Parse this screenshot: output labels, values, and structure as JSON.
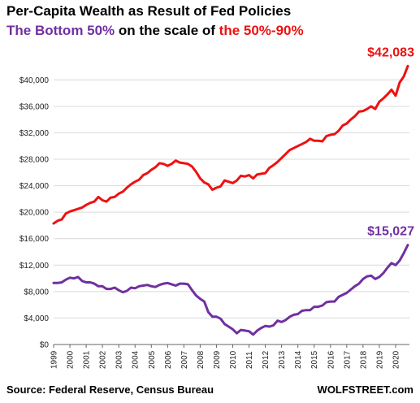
{
  "title": {
    "line1": "Per-Capita Wealth as Result of Fed Policies",
    "line2_part1": "The Bottom 50%",
    "line2_part2": " on the scale of ",
    "line2_part3": "the 50%-90%"
  },
  "footer": {
    "source": "Source: Federal Reserve, Census Bureau",
    "brand": "WOLFSTREET.com"
  },
  "colors": {
    "top_series": "#ee1111",
    "bottom_series": "#7030a0",
    "title": "#000000",
    "grid": "#d9d9d9",
    "axis": "#666666"
  },
  "chart_data": {
    "type": "line",
    "title": "Per-Capita Wealth as Result of Fed Policies",
    "xlabel": "",
    "ylabel": "",
    "x_ticks": [
      "1999",
      "2000",
      "2001",
      "2002",
      "2003",
      "2004",
      "2005",
      "2006",
      "2007",
      "2008",
      "2009",
      "2010",
      "2011",
      "2012",
      "2013",
      "2014",
      "2015",
      "2016",
      "2017",
      "2018",
      "2019",
      "2020"
    ],
    "xlim": [
      1999,
      2020.85
    ],
    "ylim": [
      0,
      42000
    ],
    "y_ticks": [
      0,
      4000,
      8000,
      12000,
      16000,
      20000,
      24000,
      28000,
      32000,
      36000,
      40000
    ],
    "y_tick_labels": [
      "$0",
      "$4,000",
      "$8,000",
      "$12,000",
      "$16,000",
      "$20,000",
      "$24,000",
      "$28,000",
      "$32,000",
      "$36,000",
      "$40,000"
    ],
    "grid": true,
    "series": [
      {
        "name": "the 50%-90%",
        "color": "#ee1111",
        "end_label": "$42,083",
        "points": [
          [
            1999.0,
            18300
          ],
          [
            1999.25,
            18700
          ],
          [
            1999.5,
            18900
          ],
          [
            1999.75,
            19800
          ],
          [
            2000.0,
            20100
          ],
          [
            2000.25,
            20300
          ],
          [
            2000.5,
            20500
          ],
          [
            2000.75,
            20700
          ],
          [
            2001.0,
            21100
          ],
          [
            2001.25,
            21400
          ],
          [
            2001.5,
            21600
          ],
          [
            2001.75,
            22300
          ],
          [
            2002.0,
            21800
          ],
          [
            2002.25,
            21600
          ],
          [
            2002.5,
            22200
          ],
          [
            2002.75,
            22300
          ],
          [
            2003.0,
            22800
          ],
          [
            2003.25,
            23100
          ],
          [
            2003.5,
            23700
          ],
          [
            2003.75,
            24200
          ],
          [
            2004.0,
            24600
          ],
          [
            2004.25,
            24900
          ],
          [
            2004.5,
            25600
          ],
          [
            2004.75,
            25900
          ],
          [
            2005.0,
            26400
          ],
          [
            2005.25,
            26800
          ],
          [
            2005.5,
            27400
          ],
          [
            2005.75,
            27300
          ],
          [
            2006.0,
            27000
          ],
          [
            2006.25,
            27300
          ],
          [
            2006.5,
            27800
          ],
          [
            2006.75,
            27500
          ],
          [
            2007.0,
            27400
          ],
          [
            2007.25,
            27300
          ],
          [
            2007.5,
            26900
          ],
          [
            2007.75,
            26100
          ],
          [
            2008.0,
            25100
          ],
          [
            2008.25,
            24500
          ],
          [
            2008.5,
            24200
          ],
          [
            2008.75,
            23400
          ],
          [
            2009.0,
            23700
          ],
          [
            2009.25,
            23900
          ],
          [
            2009.5,
            24800
          ],
          [
            2009.75,
            24600
          ],
          [
            2010.0,
            24400
          ],
          [
            2010.25,
            24800
          ],
          [
            2010.5,
            25500
          ],
          [
            2010.75,
            25400
          ],
          [
            2011.0,
            25600
          ],
          [
            2011.25,
            25100
          ],
          [
            2011.5,
            25700
          ],
          [
            2011.75,
            25800
          ],
          [
            2012.0,
            25900
          ],
          [
            2012.25,
            26700
          ],
          [
            2012.5,
            27100
          ],
          [
            2012.75,
            27600
          ],
          [
            2013.0,
            28200
          ],
          [
            2013.25,
            28800
          ],
          [
            2013.5,
            29400
          ],
          [
            2013.75,
            29700
          ],
          [
            2014.0,
            30000
          ],
          [
            2014.25,
            30300
          ],
          [
            2014.5,
            30600
          ],
          [
            2014.75,
            31100
          ],
          [
            2015.0,
            30800
          ],
          [
            2015.25,
            30800
          ],
          [
            2015.5,
            30700
          ],
          [
            2015.75,
            31500
          ],
          [
            2016.0,
            31700
          ],
          [
            2016.25,
            31800
          ],
          [
            2016.5,
            32300
          ],
          [
            2016.75,
            33100
          ],
          [
            2017.0,
            33400
          ],
          [
            2017.25,
            34000
          ],
          [
            2017.5,
            34500
          ],
          [
            2017.75,
            35200
          ],
          [
            2018.0,
            35300
          ],
          [
            2018.25,
            35600
          ],
          [
            2018.5,
            36000
          ],
          [
            2018.75,
            35600
          ],
          [
            2019.0,
            36700
          ],
          [
            2019.25,
            37200
          ],
          [
            2019.5,
            37800
          ],
          [
            2019.75,
            38500
          ],
          [
            2020.0,
            37600
          ],
          [
            2020.25,
            39600
          ],
          [
            2020.5,
            40500
          ],
          [
            2020.75,
            42083
          ]
        ]
      },
      {
        "name": "The Bottom 50%",
        "color": "#7030a0",
        "end_label": "$15,027",
        "points": [
          [
            1999.0,
            9300
          ],
          [
            1999.25,
            9300
          ],
          [
            1999.5,
            9400
          ],
          [
            1999.75,
            9800
          ],
          [
            2000.0,
            10100
          ],
          [
            2000.25,
            10000
          ],
          [
            2000.5,
            10200
          ],
          [
            2000.75,
            9600
          ],
          [
            2001.0,
            9400
          ],
          [
            2001.25,
            9400
          ],
          [
            2001.5,
            9200
          ],
          [
            2001.75,
            8800
          ],
          [
            2002.0,
            8800
          ],
          [
            2002.25,
            8400
          ],
          [
            2002.5,
            8400
          ],
          [
            2002.75,
            8600
          ],
          [
            2003.0,
            8200
          ],
          [
            2003.25,
            7900
          ],
          [
            2003.5,
            8100
          ],
          [
            2003.75,
            8600
          ],
          [
            2004.0,
            8500
          ],
          [
            2004.25,
            8800
          ],
          [
            2004.5,
            8900
          ],
          [
            2004.75,
            9000
          ],
          [
            2005.0,
            8800
          ],
          [
            2005.25,
            8700
          ],
          [
            2005.5,
            9000
          ],
          [
            2005.75,
            9200
          ],
          [
            2006.0,
            9300
          ],
          [
            2006.25,
            9100
          ],
          [
            2006.5,
            8900
          ],
          [
            2006.75,
            9200
          ],
          [
            2007.0,
            9200
          ],
          [
            2007.25,
            9100
          ],
          [
            2007.5,
            8200
          ],
          [
            2007.75,
            7400
          ],
          [
            2008.0,
            6900
          ],
          [
            2008.25,
            6500
          ],
          [
            2008.5,
            4900
          ],
          [
            2008.75,
            4200
          ],
          [
            2009.0,
            4200
          ],
          [
            2009.25,
            3900
          ],
          [
            2009.5,
            3100
          ],
          [
            2009.75,
            2700
          ],
          [
            2010.0,
            2300
          ],
          [
            2010.25,
            1700
          ],
          [
            2010.5,
            2200
          ],
          [
            2010.75,
            2100
          ],
          [
            2011.0,
            2000
          ],
          [
            2011.25,
            1500
          ],
          [
            2011.5,
            2100
          ],
          [
            2011.75,
            2500
          ],
          [
            2012.0,
            2800
          ],
          [
            2012.25,
            2700
          ],
          [
            2012.5,
            2900
          ],
          [
            2012.75,
            3600
          ],
          [
            2013.0,
            3400
          ],
          [
            2013.25,
            3700
          ],
          [
            2013.5,
            4200
          ],
          [
            2013.75,
            4500
          ],
          [
            2014.0,
            4600
          ],
          [
            2014.25,
            5100
          ],
          [
            2014.5,
            5200
          ],
          [
            2014.75,
            5200
          ],
          [
            2015.0,
            5700
          ],
          [
            2015.25,
            5700
          ],
          [
            2015.5,
            5900
          ],
          [
            2015.75,
            6400
          ],
          [
            2016.0,
            6500
          ],
          [
            2016.25,
            6500
          ],
          [
            2016.5,
            7200
          ],
          [
            2016.75,
            7500
          ],
          [
            2017.0,
            7800
          ],
          [
            2017.25,
            8300
          ],
          [
            2017.5,
            8800
          ],
          [
            2017.75,
            9200
          ],
          [
            2018.0,
            9900
          ],
          [
            2018.25,
            10300
          ],
          [
            2018.5,
            10400
          ],
          [
            2018.75,
            9900
          ],
          [
            2019.0,
            10200
          ],
          [
            2019.25,
            10800
          ],
          [
            2019.5,
            11600
          ],
          [
            2019.75,
            12300
          ],
          [
            2020.0,
            12000
          ],
          [
            2020.25,
            12700
          ],
          [
            2020.5,
            13800
          ],
          [
            2020.75,
            15027
          ]
        ]
      }
    ]
  }
}
